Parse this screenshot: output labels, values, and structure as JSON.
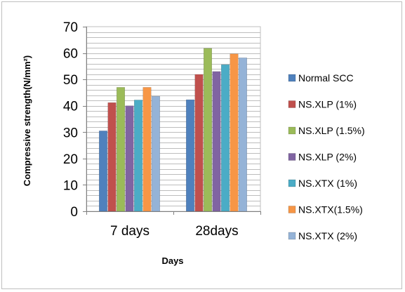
{
  "chart_data": {
    "type": "bar",
    "categories": [
      "7 days",
      "28days"
    ],
    "xlabel": "Days",
    "ylabel": "Compressive strength(N/mm²)",
    "ylim": [
      0,
      70
    ],
    "yticks": [
      0,
      10,
      20,
      30,
      40,
      50,
      60,
      70
    ],
    "grid": true,
    "legend": "right",
    "series": [
      {
        "name": "Normal SCC",
        "color": "#4f81bd",
        "values": [
          30.5,
          42.3
        ]
      },
      {
        "name": "NS.XLP (1%)",
        "color": "#c0504d",
        "values": [
          41.2,
          51.9
        ]
      },
      {
        "name": "NS.XLP (1.5%)",
        "color": "#9bbb59",
        "values": [
          47.0,
          61.8
        ]
      },
      {
        "name": "NS.XLP (2%)",
        "color": "#8064a2",
        "values": [
          40.0,
          53.0
        ]
      },
      {
        "name": "NS.XTX (1%)",
        "color": "#4bacc6",
        "values": [
          42.2,
          55.6
        ]
      },
      {
        "name": "NS.XTX(1.5%)",
        "color": "#f79646",
        "values": [
          47.0,
          59.7
        ]
      },
      {
        "name": "NS.XTX (2%)",
        "color": "#95b3d7",
        "values": [
          43.6,
          58.2
        ]
      }
    ]
  }
}
